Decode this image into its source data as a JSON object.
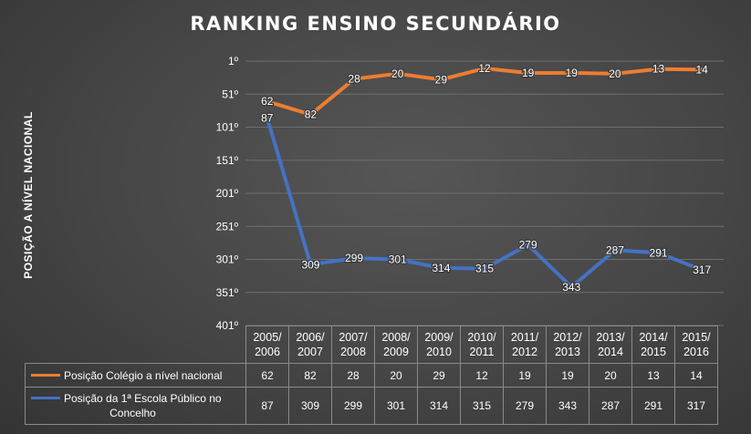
{
  "chart_data": {
    "type": "line",
    "title": "RANKING ENSINO SECUNDÁRIO",
    "ylabel": "POSIÇÃO A NÍVEL NACIONAL",
    "y_inverted": true,
    "ylim": [
      1,
      401
    ],
    "yticks": [
      1,
      51,
      101,
      151,
      201,
      251,
      301,
      351,
      401
    ],
    "ytick_labels": [
      "1º",
      "51º",
      "101º",
      "151º",
      "201º",
      "251º",
      "301º",
      "351º",
      "401º"
    ],
    "categories": [
      "2005/2006",
      "2006/2007",
      "2007/2008",
      "2008/2009",
      "2009/2010",
      "2010/2011",
      "2011/2012",
      "2012/2013",
      "2013/2014",
      "2014/2015",
      "2015/2016"
    ],
    "category_lines": [
      [
        "2005/",
        "2006"
      ],
      [
        "2006/",
        "2007"
      ],
      [
        "2007/",
        "2008"
      ],
      [
        "2008/",
        "2009"
      ],
      [
        "2009/",
        "2010"
      ],
      [
        "2010/",
        "2011"
      ],
      [
        "2011/",
        "2012"
      ],
      [
        "2012/",
        "2013"
      ],
      [
        "2013/",
        "2014"
      ],
      [
        "2014/",
        "2015"
      ],
      [
        "2015/",
        "2016"
      ]
    ],
    "series": [
      {
        "name": "Posição Colégio a nível nacional",
        "color": "#ed7d31",
        "values": [
          62,
          82,
          28,
          20,
          29,
          12,
          19,
          19,
          20,
          13,
          14
        ]
      },
      {
        "name": "Posição da 1ª Escola Pública no Concelho",
        "color": "#4472c4",
        "values": [
          87,
          309,
          299,
          301,
          314,
          315,
          279,
          343,
          287,
          291,
          317
        ]
      }
    ],
    "grid": true,
    "data_table": true,
    "legend_position": "data-table"
  },
  "legend": {
    "series1_label": "Posição Colégio a nível nacional",
    "series2_line1": "Posição da 1ª Escola Público no",
    "series2_line2": "Concelho"
  }
}
